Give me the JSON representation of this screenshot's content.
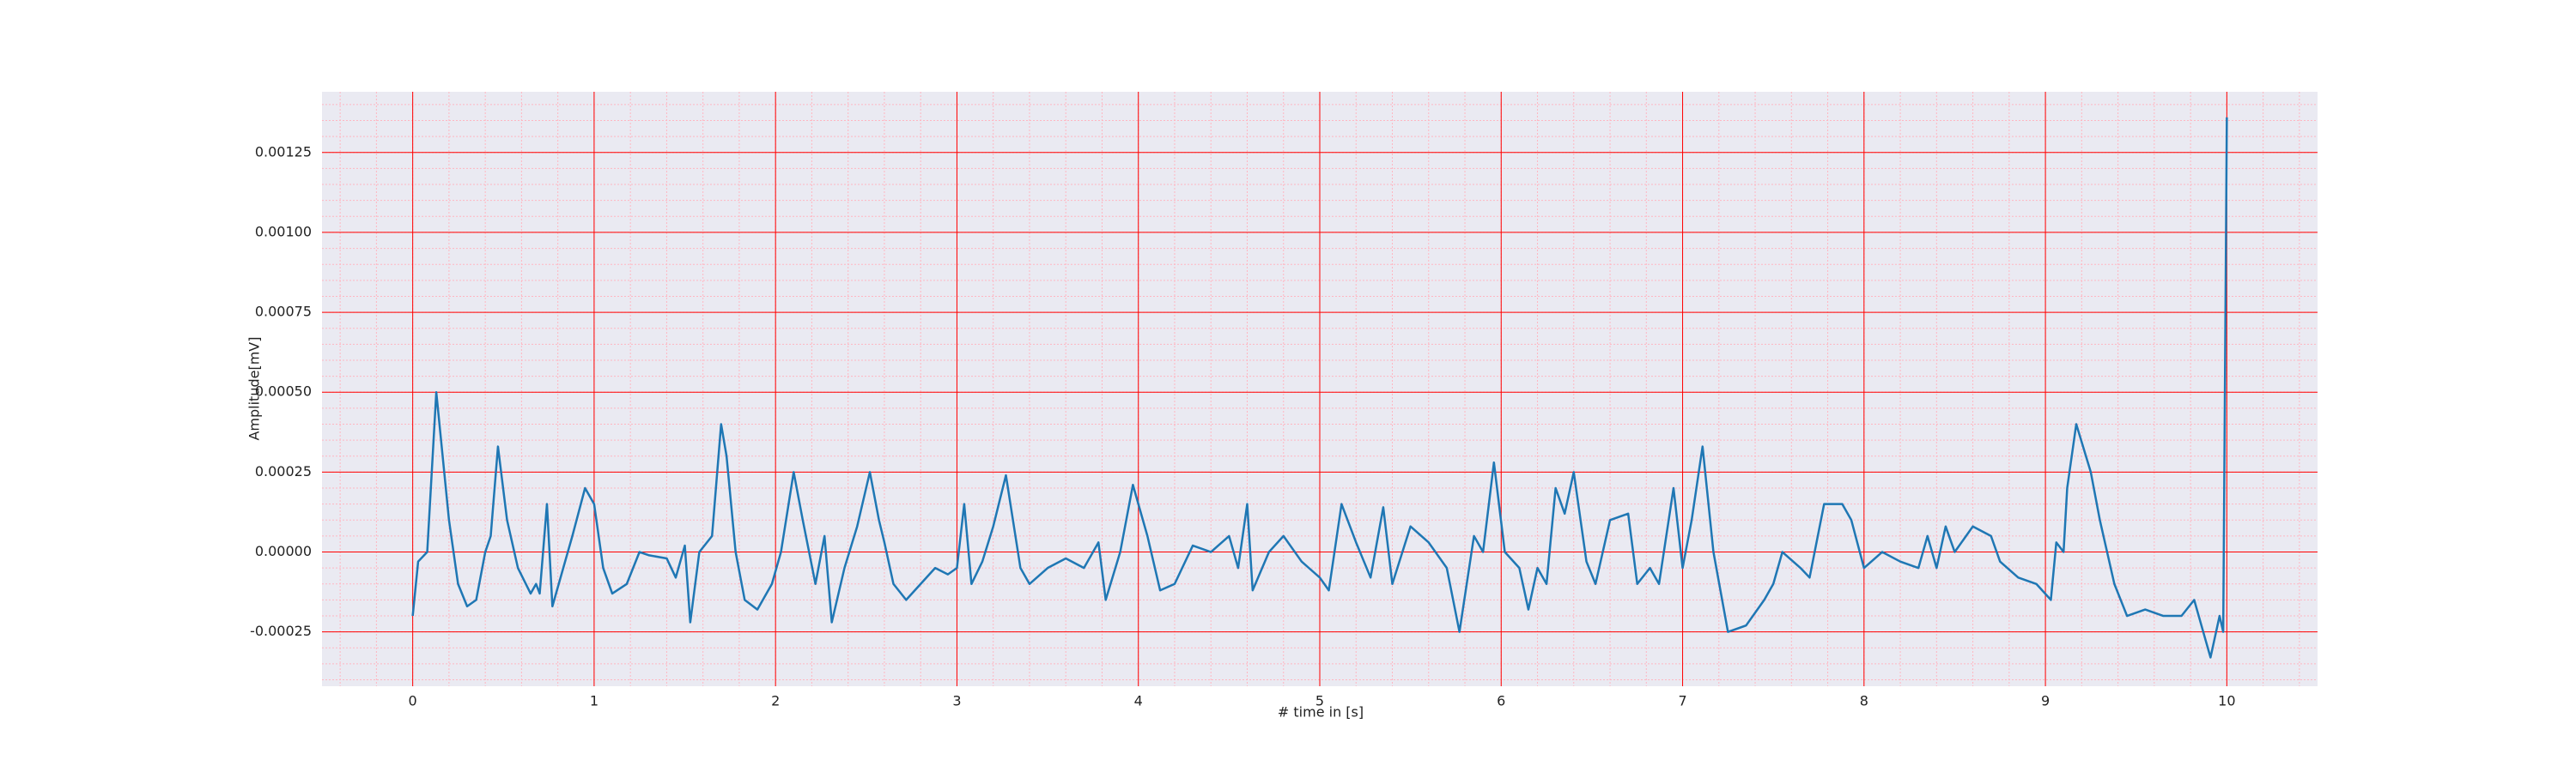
{
  "chart_data": {
    "type": "line",
    "xlabel": "# time in [s]",
    "ylabel": "Amplitude[mV]",
    "xlim": [
      -0.5,
      10.5
    ],
    "ylim": [
      -0.00042,
      0.00144
    ],
    "xticks": [
      0,
      1,
      2,
      3,
      4,
      5,
      6,
      7,
      8,
      9,
      10
    ],
    "yticks": [
      -0.00025,
      {
        "value": 0,
        "label": "0.00000"
      },
      0.00025,
      {
        "value": 0.0005,
        "label": "0.00050"
      },
      0.00075,
      {
        "value": 0.001,
        "label": "0.00100"
      },
      0.00125
    ],
    "grid": true,
    "grid_color": "#ff0000",
    "minor_grid_color": "#ffb6c1",
    "minor_xstep": 0.2,
    "minor_ystep": 5e-05,
    "background": "#eaeaf2",
    "series": [
      {
        "color": "#1f77b4",
        "x": [
          0,
          0.03,
          0.08,
          0.13,
          0.2,
          0.25,
          0.3,
          0.35,
          0.4,
          0.43,
          0.47,
          0.52,
          0.58,
          0.65,
          0.68,
          0.7,
          0.74,
          0.77,
          0.83,
          0.88,
          0.95,
          1.0,
          1.05,
          1.1,
          1.18,
          1.25,
          1.3,
          1.4,
          1.45,
          1.5,
          1.53,
          1.58,
          1.65,
          1.7,
          1.73,
          1.78,
          1.83,
          1.9,
          1.98,
          2.03,
          2.1,
          2.15,
          2.22,
          2.27,
          2.31,
          2.38,
          2.45,
          2.52,
          2.57,
          2.6,
          2.65,
          2.72,
          2.8,
          2.88,
          2.95,
          3.0,
          3.04,
          3.08,
          3.14,
          3.2,
          3.27,
          3.35,
          3.4,
          3.5,
          3.6,
          3.7,
          3.78,
          3.82,
          3.9,
          3.97,
          4.05,
          4.12,
          4.2,
          4.3,
          4.4,
          4.5,
          4.55,
          4.6,
          4.63,
          4.72,
          4.8,
          4.9,
          5.0,
          5.05,
          5.12,
          5.2,
          5.28,
          5.35,
          5.4,
          5.5,
          5.6,
          5.7,
          5.77,
          5.85,
          5.9,
          5.96,
          6.02,
          6.1,
          6.15,
          6.2,
          6.25,
          6.3,
          6.35,
          6.4,
          6.47,
          6.52,
          6.6,
          6.7,
          6.75,
          6.82,
          6.87,
          6.95,
          7.0,
          7.05,
          7.11,
          7.17,
          7.25,
          7.35,
          7.45,
          7.5,
          7.55,
          7.65,
          7.7,
          7.78,
          7.88,
          7.93,
          8.0,
          8.1,
          8.2,
          8.3,
          8.35,
          8.4,
          8.45,
          8.5,
          8.6,
          8.7,
          8.75,
          8.85,
          8.95,
          9.03,
          9.06,
          9.1,
          9.12,
          9.17,
          9.25,
          9.3,
          9.38,
          9.45,
          9.55,
          9.65,
          9.75,
          9.82,
          9.87,
          9.91,
          9.96,
          9.98,
          10.0
        ],
        "values": [
          -0.0002,
          -3e-05,
          0,
          0.0005,
          0.0001,
          -0.0001,
          -0.00017,
          -0.00015,
          0,
          5e-05,
          0.00033,
          0.0001,
          -5e-05,
          -0.00013,
          -0.0001,
          -0.00013,
          0.00015,
          -0.00017,
          -5e-05,
          5e-05,
          0.0002,
          0.00015,
          -5e-05,
          -0.00013,
          -0.0001,
          0,
          -1e-05,
          -2e-05,
          -8e-05,
          2e-05,
          -0.00022,
          0,
          5e-05,
          0.0004,
          0.0003,
          0,
          -0.00015,
          -0.00018,
          -0.0001,
          0,
          0.00025,
          0.0001,
          -0.0001,
          5e-05,
          -0.00022,
          -5e-05,
          8e-05,
          0.00025,
          0.0001,
          3e-05,
          -0.0001,
          -0.00015,
          -0.0001,
          -5e-05,
          -7e-05,
          -5e-05,
          0.00015,
          -0.0001,
          -3e-05,
          8e-05,
          0.00024,
          -5e-05,
          -0.0001,
          -5e-05,
          -2e-05,
          -5e-05,
          3e-05,
          -0.00015,
          0,
          0.00021,
          5e-05,
          -0.00012,
          -0.0001,
          2e-05,
          0,
          5e-05,
          -5e-05,
          0.00015,
          -0.00012,
          0,
          5e-05,
          -3e-05,
          -8e-05,
          -0.00012,
          0.00015,
          3e-05,
          -8e-05,
          0.00014,
          -0.0001,
          8e-05,
          3e-05,
          -5e-05,
          -0.00025,
          5e-05,
          0,
          0.00028,
          0,
          -5e-05,
          -0.00018,
          -5e-05,
          -0.0001,
          0.0002,
          0.00012,
          0.00025,
          -3e-05,
          -0.0001,
          0.0001,
          0.00012,
          -0.0001,
          -5e-05,
          -0.0001,
          0.0002,
          -5e-05,
          0.0001,
          0.00033,
          0,
          -0.00025,
          -0.00023,
          -0.00015,
          -0.0001,
          0,
          -5e-05,
          -8e-05,
          0.00015,
          0.00015,
          0.0001,
          -5e-05,
          0,
          -3e-05,
          -5e-05,
          5e-05,
          -5e-05,
          8e-05,
          0,
          8e-05,
          5e-05,
          -3e-05,
          -8e-05,
          -0.0001,
          -0.00015,
          3e-05,
          0,
          0.0002,
          0.0004,
          0.00025,
          0.0001,
          -0.0001,
          -0.0002,
          -0.00018,
          -0.0002,
          -0.0002,
          -0.00015,
          -0.00025,
          -0.00033,
          -0.0002,
          -0.00025,
          0.00136
        ]
      }
    ]
  }
}
